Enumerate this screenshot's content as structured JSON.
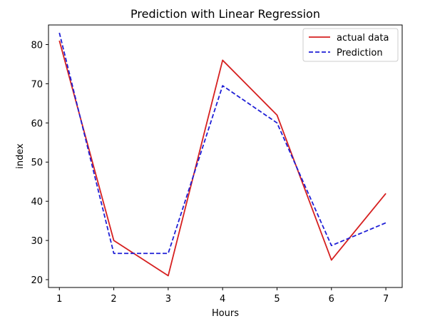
{
  "chart_data": {
    "type": "line",
    "title": "Prediction with Linear Regression",
    "xlabel": "Hours",
    "ylabel": "index",
    "x": [
      1,
      2,
      3,
      4,
      5,
      6,
      7
    ],
    "xlim": [
      0.8,
      7.3
    ],
    "ylim": [
      18,
      85
    ],
    "xticks": [
      1,
      2,
      3,
      4,
      5,
      6,
      7
    ],
    "yticks": [
      20,
      30,
      40,
      50,
      60,
      70,
      80
    ],
    "grid": false,
    "legend_position": "top-right",
    "series": [
      {
        "name": "actual data",
        "values": [
          81,
          30,
          21,
          76,
          62,
          25,
          42
        ],
        "color": "#d62020",
        "style": "solid"
      },
      {
        "name": "Prediction",
        "values": [
          83,
          26.7,
          26.7,
          69.5,
          60,
          28.7,
          34.5
        ],
        "color": "#1f1fd6",
        "style": "dashed"
      }
    ]
  }
}
